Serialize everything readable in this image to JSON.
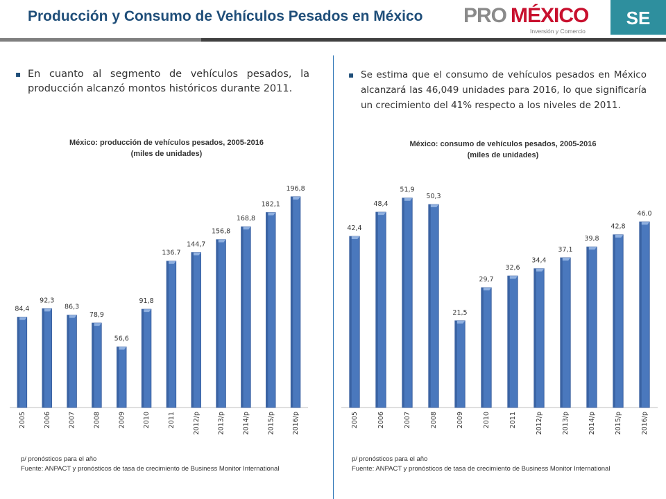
{
  "header": {
    "title": "Producción y Consumo de Vehículos Pesados en México",
    "logo_pro": "PRO",
    "logo_mexico": "MÉXICO",
    "logo_tagline": "Inversión y Comercio",
    "se_badge": "SE",
    "colors": {
      "title": "#1f4e79",
      "se_badge": "#2e8f9e",
      "logo_red": "#c8102e",
      "bar": "#4a78bd"
    }
  },
  "left": {
    "bullet": "En cuanto al segmento de vehículos pesados, la producción alcanzó montos históricos durante 2011.",
    "chart_title_line1": "México: producción de vehículos pesados, 2005-2016",
    "chart_title_line2": "(miles de unidades)",
    "footnote_line1": "p/ pronósticos para el año",
    "footnote_line2": "Fuente: ANPACT y pronósticos de tasa de crecimiento de Business Monitor International"
  },
  "right": {
    "bullet": "Se estima que el consumo de vehículos pesados en México alcanzará las 46,049 unidades para 2016, lo que significaría un crecimiento del 41% respecto a los niveles de 2011.",
    "chart_title_line1": "México: consumo de vehículos pesados, 2005-2016",
    "chart_title_line2": "(miles de unidades)",
    "footnote_line1": "p/ pronósticos para el año",
    "footnote_line2": "Fuente: ANPACT y pronósticos de tasa de crecimiento de Business Monitor International"
  },
  "chart_data": [
    {
      "type": "bar",
      "title": "México: producción de vehículos pesados, 2005-2016",
      "subtitle": "(miles de unidades)",
      "categories": [
        "2005",
        "2006",
        "2007",
        "2008",
        "2009",
        "2010",
        "2011",
        "2012/p",
        "2013/p",
        "2014/p",
        "2015/p",
        "2016/p"
      ],
      "values": [
        84.4,
        92.3,
        86.3,
        78.9,
        56.6,
        91.8,
        136.7,
        144.7,
        156.8,
        168.8,
        182.1,
        196.8
      ],
      "labels": [
        "84,4",
        "92,3",
        "86,3",
        "78,9",
        "56,6",
        "91,8",
        "136.7",
        "144,7",
        "156,8",
        "168,8",
        "182,1",
        "196,8"
      ],
      "ylim": [
        0,
        220
      ],
      "grid": false,
      "legend": "none"
    },
    {
      "type": "bar",
      "title": "México: consumo de vehículos pesados, 2005-2016",
      "subtitle": "(miles de unidades)",
      "categories": [
        "2005",
        "2006",
        "2007",
        "2008",
        "2009",
        "2010",
        "2011",
        "2012/p",
        "2013/p",
        "2014/p",
        "2015/p",
        "2016/p"
      ],
      "values": [
        42.4,
        48.4,
        51.9,
        50.3,
        21.5,
        29.7,
        32.6,
        34.4,
        37.1,
        39.8,
        42.8,
        46.0
      ],
      "labels": [
        "42,4",
        "48,4",
        "51,9",
        "50,3",
        "21,5",
        "29,7",
        "32,6",
        "34,4",
        "37,1",
        "39,8",
        "42,8",
        "46.0"
      ],
      "ylim": [
        0,
        57
      ],
      "grid": false,
      "legend": "none"
    }
  ]
}
